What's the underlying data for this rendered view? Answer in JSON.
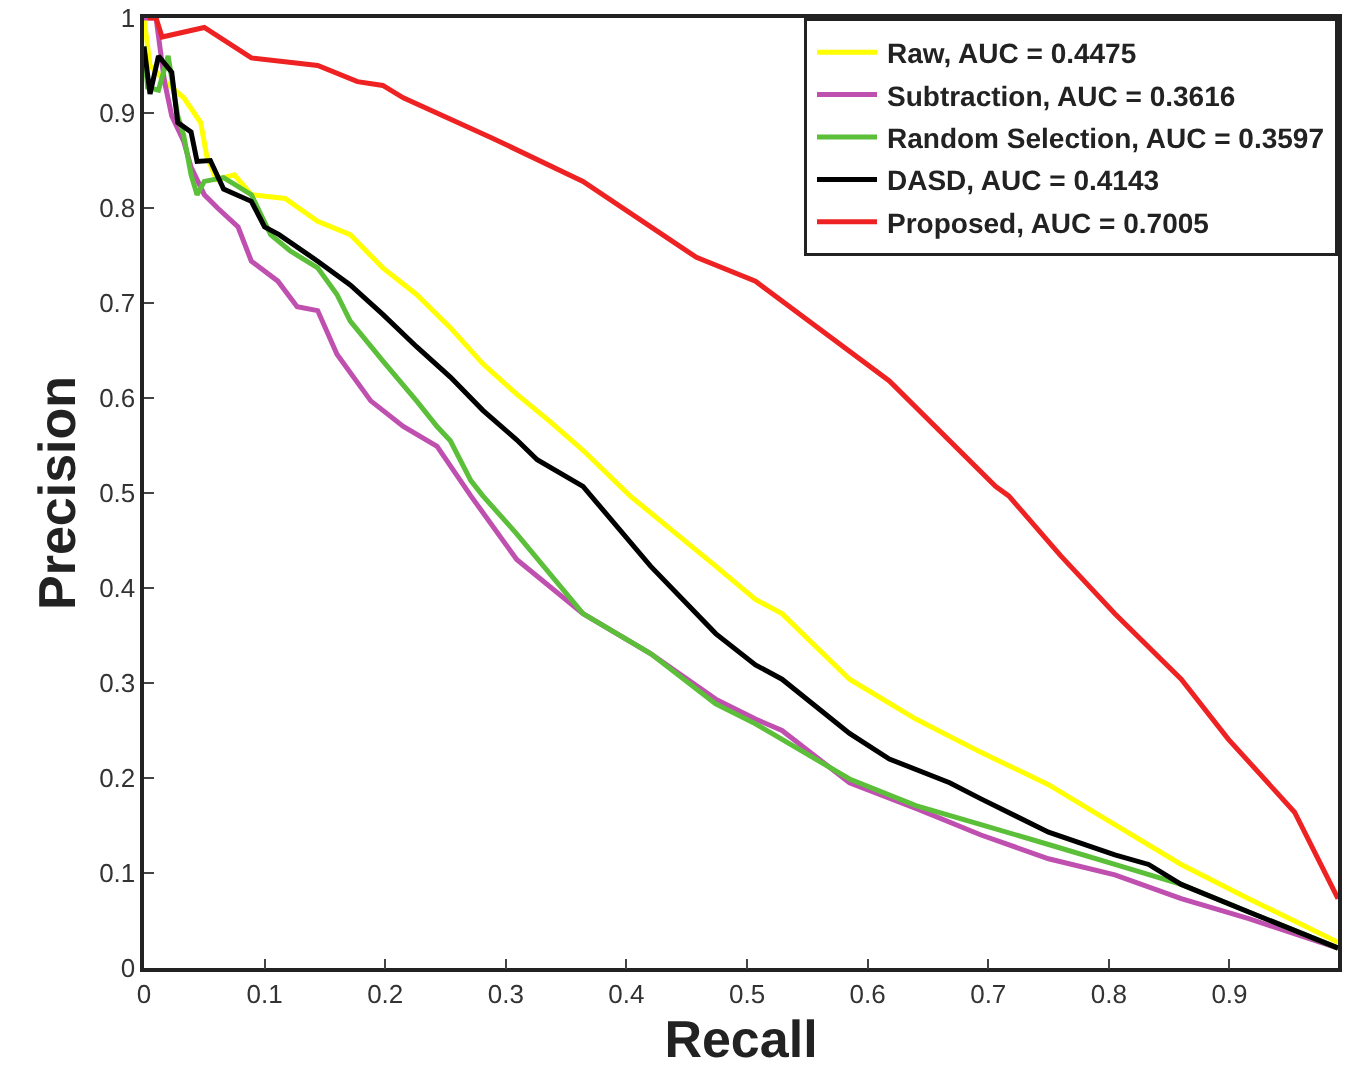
{
  "chart_data": {
    "type": "line",
    "xlabel": "Recall",
    "ylabel": "Precision",
    "xlim": [
      0,
      0.99
    ],
    "ylim": [
      0,
      1
    ],
    "xticks": [
      0,
      0.1,
      0.2,
      0.3,
      0.4,
      0.5,
      0.6,
      0.7,
      0.8,
      0.9
    ],
    "yticks": [
      0,
      0.1,
      0.2,
      0.3,
      0.4,
      0.5,
      0.6,
      0.7,
      0.8,
      0.9,
      1
    ],
    "legend": "top right",
    "line_style": "solid",
    "marker": "none",
    "series": [
      {
        "name": "Raw, AUC = 0.4475",
        "color": "#ffff00",
        "x": [
          0,
          0.005,
          0.02,
          0.033,
          0.047,
          0.052,
          0.06,
          0.066,
          0.075,
          0.089,
          0.117,
          0.144,
          0.171,
          0.198,
          0.226,
          0.254,
          0.281,
          0.309,
          0.336,
          0.364,
          0.403,
          0.474,
          0.507,
          0.529,
          0.585,
          0.64,
          0.694,
          0.75,
          0.805,
          0.86,
          0.916,
          0.99
        ],
        "values": [
          1.0,
          0.95,
          0.93,
          0.916,
          0.89,
          0.855,
          0.83,
          0.832,
          0.835,
          0.814,
          0.81,
          0.786,
          0.772,
          0.737,
          0.709,
          0.674,
          0.636,
          0.604,
          0.576,
          0.545,
          0.497,
          0.423,
          0.388,
          0.373,
          0.304,
          0.262,
          0.227,
          0.193,
          0.151,
          0.109,
          0.073,
          0.027
        ]
      },
      {
        "name": "Subtraction, AUC = 0.3616",
        "color": "#c050b0",
        "x": [
          0,
          0.01,
          0.017,
          0.023,
          0.033,
          0.039,
          0.05,
          0.061,
          0.078,
          0.089,
          0.111,
          0.127,
          0.144,
          0.16,
          0.188,
          0.215,
          0.243,
          0.271,
          0.309,
          0.364,
          0.42,
          0.474,
          0.507,
          0.529,
          0.585,
          0.64,
          0.694,
          0.75,
          0.805,
          0.86,
          0.916,
          0.99
        ],
        "values": [
          1.0,
          1.0,
          0.933,
          0.897,
          0.87,
          0.843,
          0.814,
          0.8,
          0.78,
          0.744,
          0.723,
          0.696,
          0.692,
          0.646,
          0.597,
          0.57,
          0.549,
          0.497,
          0.43,
          0.373,
          0.331,
          0.283,
          0.262,
          0.25,
          0.195,
          0.168,
          0.14,
          0.115,
          0.098,
          0.073,
          0.052,
          0.021
        ]
      },
      {
        "name": "Random Selection, AUC = 0.3597",
        "color": "#5cbf3a",
        "x": [
          0,
          0.003,
          0.012,
          0.02,
          0.028,
          0.033,
          0.039,
          0.044,
          0.05,
          0.066,
          0.089,
          0.105,
          0.121,
          0.144,
          0.16,
          0.171,
          0.198,
          0.226,
          0.243,
          0.254,
          0.271,
          0.281,
          0.309,
          0.364,
          0.42,
          0.474,
          0.507,
          0.585,
          0.64,
          0.694,
          0.75,
          0.805,
          0.86,
          0.916,
          0.99
        ],
        "values": [
          0.97,
          0.927,
          0.924,
          0.96,
          0.897,
          0.876,
          0.835,
          0.814,
          0.828,
          0.832,
          0.814,
          0.772,
          0.755,
          0.737,
          0.709,
          0.681,
          0.639,
          0.597,
          0.57,
          0.555,
          0.513,
          0.497,
          0.457,
          0.373,
          0.331,
          0.278,
          0.257,
          0.199,
          0.171,
          0.151,
          0.13,
          0.109,
          0.088,
          0.059,
          0.021
        ]
      },
      {
        "name": "DASD, AUC = 0.4143",
        "color": "#000000",
        "x": [
          0,
          0.005,
          0.012,
          0.023,
          0.028,
          0.039,
          0.044,
          0.055,
          0.066,
          0.089,
          0.1,
          0.112,
          0.144,
          0.171,
          0.198,
          0.226,
          0.254,
          0.281,
          0.309,
          0.326,
          0.364,
          0.42,
          0.474,
          0.507,
          0.529,
          0.585,
          0.618,
          0.668,
          0.694,
          0.75,
          0.805,
          0.833,
          0.86,
          0.916,
          0.99
        ],
        "values": [
          0.97,
          0.92,
          0.96,
          0.943,
          0.89,
          0.88,
          0.849,
          0.85,
          0.82,
          0.807,
          0.78,
          0.772,
          0.744,
          0.719,
          0.688,
          0.654,
          0.622,
          0.587,
          0.556,
          0.535,
          0.507,
          0.423,
          0.352,
          0.319,
          0.304,
          0.247,
          0.22,
          0.195,
          0.178,
          0.143,
          0.119,
          0.109,
          0.088,
          0.059,
          0.021
        ]
      },
      {
        "name": "Proposed, AUC = 0.7005",
        "color": "#ee2222",
        "x": [
          0.003,
          0.01,
          0.015,
          0.05,
          0.089,
          0.144,
          0.177,
          0.198,
          0.215,
          0.288,
          0.364,
          0.458,
          0.507,
          0.529,
          0.618,
          0.706,
          0.717,
          0.76,
          0.805,
          0.86,
          0.899,
          0.954,
          0.99
        ],
        "values": [
          1.0,
          1.0,
          0.98,
          0.99,
          0.958,
          0.95,
          0.933,
          0.929,
          0.916,
          0.874,
          0.828,
          0.748,
          0.723,
          0.702,
          0.618,
          0.507,
          0.497,
          0.434,
          0.373,
          0.304,
          0.241,
          0.164,
          0.073
        ]
      }
    ]
  }
}
